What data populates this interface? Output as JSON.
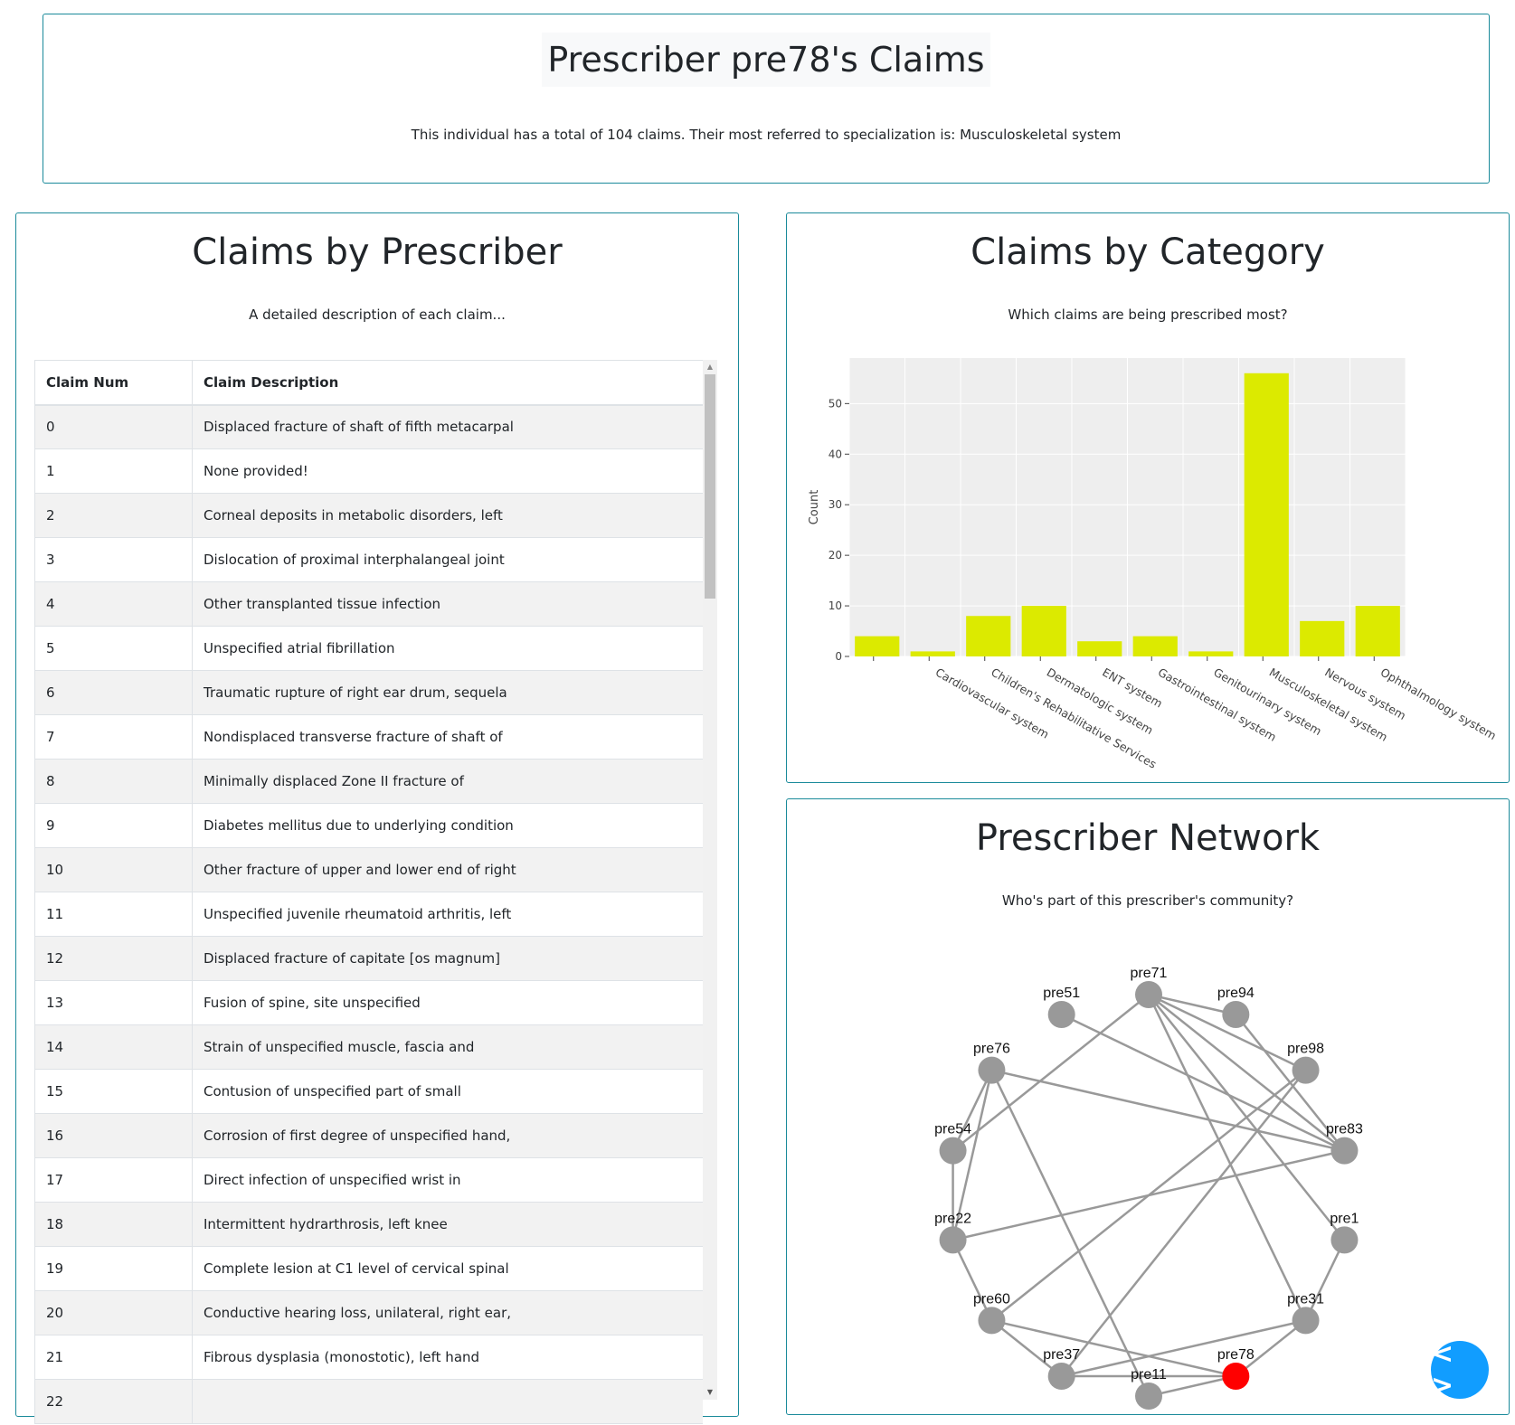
{
  "header": {
    "title": "Prescriber pre78's Claims",
    "subtitle": "This individual has a total of 104 claims. Their most referred to specialization is: Musculoskeletal system"
  },
  "claims_panel": {
    "title": "Claims by Prescriber",
    "subtitle": "A detailed description of each claim...",
    "columns": [
      "Claim Num",
      "Claim Description"
    ],
    "rows": [
      [
        "0",
        "Displaced fracture of shaft of fifth metacarpal"
      ],
      [
        "1",
        "None provided!"
      ],
      [
        "2",
        "Corneal deposits in metabolic disorders, left"
      ],
      [
        "3",
        "Dislocation of proximal interphalangeal joint"
      ],
      [
        "4",
        "Other transplanted tissue infection"
      ],
      [
        "5",
        "Unspecified atrial fibrillation"
      ],
      [
        "6",
        "Traumatic rupture of right ear drum, sequela"
      ],
      [
        "7",
        "Nondisplaced transverse fracture of shaft of"
      ],
      [
        "8",
        "Minimally displaced Zone II fracture of"
      ],
      [
        "9",
        "Diabetes mellitus due to underlying condition"
      ],
      [
        "10",
        "Other fracture of upper and lower end of right"
      ],
      [
        "11",
        "Unspecified juvenile rheumatoid arthritis, left"
      ],
      [
        "12",
        "Displaced fracture of capitate [os magnum]"
      ],
      [
        "13",
        "Fusion of spine, site unspecified"
      ],
      [
        "14",
        "Strain of unspecified muscle, fascia and"
      ],
      [
        "15",
        "Contusion of unspecified part of small"
      ],
      [
        "16",
        "Corrosion of first degree of unspecified hand,"
      ],
      [
        "17",
        "Direct infection of unspecified wrist in"
      ],
      [
        "18",
        "Intermittent hydrarthrosis, left knee"
      ],
      [
        "19",
        "Complete lesion at C1 level of cervical spinal"
      ],
      [
        "20",
        "Conductive hearing loss, unilateral, right ear,"
      ],
      [
        "21",
        "Fibrous dysplasia (monostotic), left hand"
      ],
      [
        "22",
        ""
      ]
    ]
  },
  "category_panel": {
    "title": "Claims by Category",
    "subtitle": "Which claims are being prescribed most?"
  },
  "network_panel": {
    "title": "Prescriber Network",
    "subtitle": "Who's part of this prescriber's community?"
  },
  "chart_data": [
    {
      "type": "bar",
      "categories": [
        "",
        "Cardiovascular system",
        "Children's Rehabilitative Services",
        "Dermatologic system",
        "ENT system",
        "Gastrointestinal system",
        "Genitourinary system",
        "Musculoskeletal system",
        "Nervous system",
        "Ophthalmology system"
      ],
      "values": [
        4,
        1,
        8,
        10,
        3,
        4,
        1,
        56,
        7,
        10
      ],
      "title": "",
      "xlabel": "",
      "ylabel": "Count",
      "ylim": [
        0,
        59
      ],
      "yticks": [
        0,
        10,
        20,
        30,
        40,
        50
      ],
      "bar_color": "#dcea00",
      "plot_bg": "#eeeeee",
      "grid": true
    },
    {
      "type": "network",
      "nodes": [
        "pre71",
        "pre94",
        "pre98",
        "pre83",
        "pre1",
        "pre31",
        "pre78",
        "pre11",
        "pre37",
        "pre60",
        "pre22",
        "pre54",
        "pre76",
        "pre51"
      ],
      "highlight": "pre78",
      "node_color": "#999999",
      "highlight_color": "#ff0000",
      "edges": [
        [
          "pre71",
          "pre94"
        ],
        [
          "pre71",
          "pre98"
        ],
        [
          "pre71",
          "pre83"
        ],
        [
          "pre71",
          "pre1"
        ],
        [
          "pre71",
          "pre31"
        ],
        [
          "pre71",
          "pre54"
        ],
        [
          "pre51",
          "pre83"
        ],
        [
          "pre94",
          "pre83"
        ],
        [
          "pre98",
          "pre60"
        ],
        [
          "pre98",
          "pre37"
        ],
        [
          "pre76",
          "pre83"
        ],
        [
          "pre76",
          "pre54"
        ],
        [
          "pre76",
          "pre22"
        ],
        [
          "pre76",
          "pre11"
        ],
        [
          "pre83",
          "pre22"
        ],
        [
          "pre54",
          "pre22"
        ],
        [
          "pre22",
          "pre60"
        ],
        [
          "pre60",
          "pre37"
        ],
        [
          "pre60",
          "pre78"
        ],
        [
          "pre1",
          "pre31"
        ],
        [
          "pre31",
          "pre78"
        ],
        [
          "pre31",
          "pre37"
        ],
        [
          "pre37",
          "pre78"
        ],
        [
          "pre11",
          "pre78"
        ]
      ]
    }
  ],
  "code_button": {
    "label": "< >"
  }
}
